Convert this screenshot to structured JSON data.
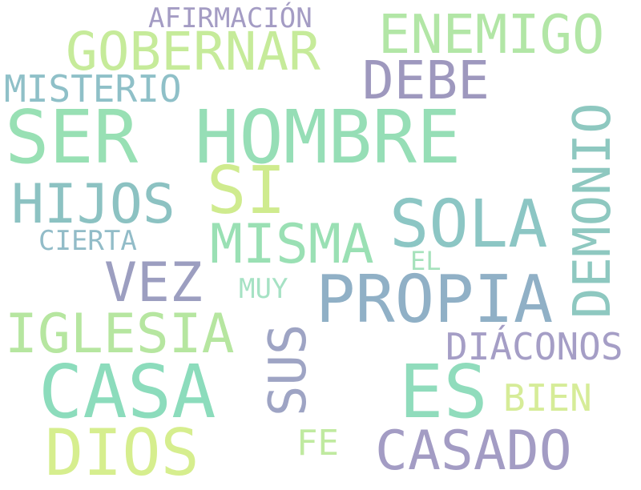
{
  "words": [
    {
      "text": "AFIRMACIÓN",
      "color": "#a49cc4"
    },
    {
      "text": "ENEMIGO",
      "color": "#b2e6a6"
    },
    {
      "text": "GOBERNAR",
      "color": "#c6eb9a"
    },
    {
      "text": "DEBE",
      "color": "#9e98be"
    },
    {
      "text": "MISTERIO",
      "color": "#8fc0c8"
    },
    {
      "text": "SER",
      "color": "#98e0b4"
    },
    {
      "text": "HOMBRE",
      "color": "#96deb6"
    },
    {
      "text": "DEMONIO",
      "color": "#8ec8c0"
    },
    {
      "text": "SI",
      "color": "#cfeb8e"
    },
    {
      "text": "HIJOS",
      "color": "#8cc2c2"
    },
    {
      "text": "SOLA",
      "color": "#8cc6c4"
    },
    {
      "text": "MISMA",
      "color": "#9ae0b4"
    },
    {
      "text": "CIERTA",
      "color": "#92bcc8"
    },
    {
      "text": "EL",
      "color": "#a6e2bc"
    },
    {
      "text": "VEZ",
      "color": "#9c9ec0"
    },
    {
      "text": "MUY",
      "color": "#a6e2c4"
    },
    {
      "text": "PROPIA",
      "color": "#90b0c6"
    },
    {
      "text": "IGLESIA",
      "color": "#b6e6a0"
    },
    {
      "text": "SUS",
      "color": "#9ea4c4"
    },
    {
      "text": "DIÁCONOS",
      "color": "#a59ec6"
    },
    {
      "text": "CASA",
      "color": "#8cdcbc"
    },
    {
      "text": "ES",
      "color": "#90dcbc"
    },
    {
      "text": "BIEN",
      "color": "#d6ec98"
    },
    {
      "text": "DIOS",
      "color": "#d6ee8e"
    },
    {
      "text": "FE",
      "color": "#c0eaa0"
    },
    {
      "text": "CASADO",
      "color": "#a39cc4"
    }
  ]
}
